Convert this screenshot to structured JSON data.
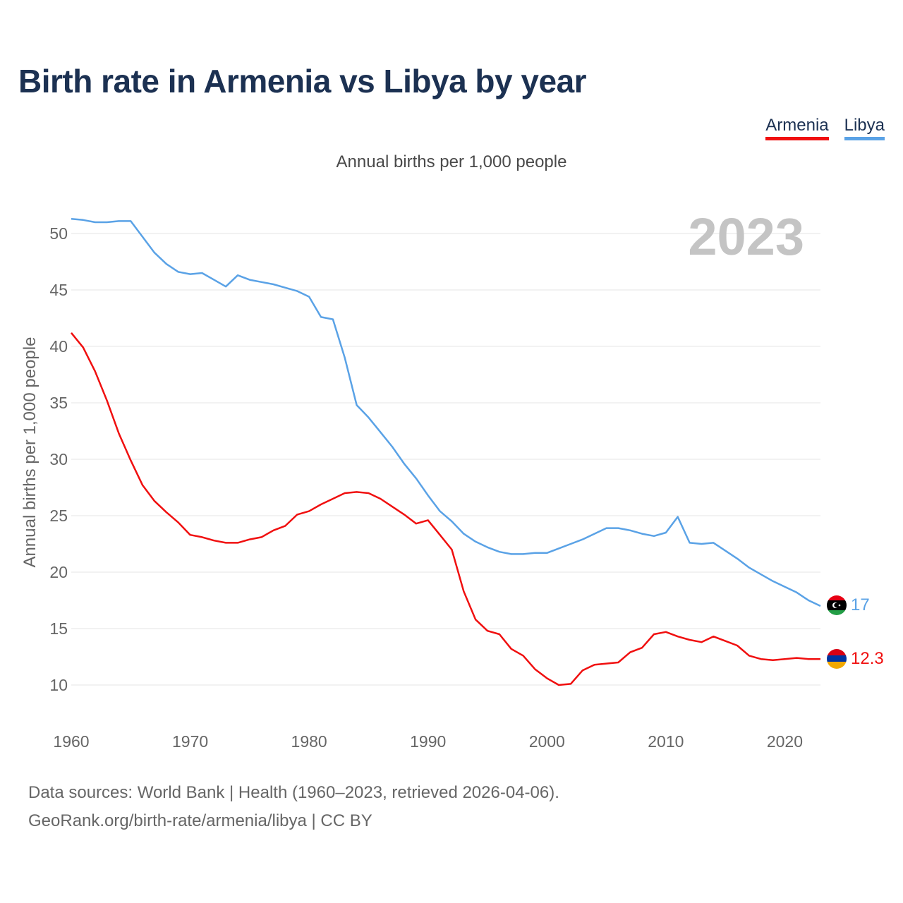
{
  "title": "Birth rate in Armenia vs Libya by year",
  "subtitle": "Annual births per 1,000 people",
  "legend": [
    {
      "name": "Armenia",
      "color": "#f00f0f"
    },
    {
      "name": "Libya",
      "color": "#5aa2e6"
    }
  ],
  "year_watermark": "2023",
  "footer": {
    "line1": "Data sources: World Bank | Health (1960–2023, retrieved 2026-04-06).",
    "line2": "GeoRank.org/birth-rate/armenia/libya | CC BY"
  },
  "chart_data": {
    "type": "line",
    "title": "Birth rate in Armenia vs Libya by year",
    "ylabel": "Annual births per 1,000 people",
    "xlabel": "",
    "xlim": [
      1960,
      2023
    ],
    "ylim": [
      7,
      53
    ],
    "x_ticks": [
      1960,
      1970,
      1980,
      1990,
      2000,
      2010,
      2020
    ],
    "y_ticks": [
      10,
      15,
      20,
      25,
      30,
      35,
      40,
      45,
      50
    ],
    "grid": true,
    "series": [
      {
        "name": "Libya",
        "color": "#5aa2e6",
        "end_label": "17",
        "flag": "libya",
        "x": [
          1960,
          1961,
          1962,
          1963,
          1964,
          1965,
          1966,
          1967,
          1968,
          1969,
          1970,
          1971,
          1972,
          1973,
          1974,
          1975,
          1976,
          1977,
          1978,
          1979,
          1980,
          1981,
          1982,
          1983,
          1984,
          1985,
          1986,
          1987,
          1988,
          1989,
          1990,
          1991,
          1992,
          1993,
          1994,
          1995,
          1996,
          1997,
          1998,
          1999,
          2000,
          2001,
          2002,
          2003,
          2004,
          2005,
          2006,
          2007,
          2008,
          2009,
          2010,
          2011,
          2012,
          2013,
          2014,
          2015,
          2016,
          2017,
          2018,
          2019,
          2020,
          2021,
          2022,
          2023
        ],
        "values": [
          51.3,
          51.2,
          51.0,
          51.0,
          51.1,
          51.1,
          49.7,
          48.3,
          47.3,
          46.6,
          46.4,
          46.5,
          45.9,
          45.3,
          46.3,
          45.9,
          45.7,
          45.5,
          45.2,
          44.9,
          44.4,
          42.6,
          42.4,
          39.0,
          34.8,
          33.7,
          32.4,
          31.1,
          29.6,
          28.3,
          26.8,
          25.4,
          24.5,
          23.4,
          22.7,
          22.2,
          21.8,
          21.6,
          21.6,
          21.7,
          21.7,
          22.1,
          22.5,
          22.9,
          23.4,
          23.9,
          23.9,
          23.7,
          23.4,
          23.2,
          23.5,
          24.9,
          22.6,
          22.5,
          22.6,
          21.9,
          21.2,
          20.4,
          19.8,
          19.2,
          18.7,
          18.2,
          17.5,
          17.0
        ]
      },
      {
        "name": "Armenia",
        "color": "#f00f0f",
        "end_label": "12.3",
        "flag": "armenia",
        "x": [
          1960,
          1961,
          1962,
          1963,
          1964,
          1965,
          1966,
          1967,
          1968,
          1969,
          1970,
          1971,
          1972,
          1973,
          1974,
          1975,
          1976,
          1977,
          1978,
          1979,
          1980,
          1981,
          1982,
          1983,
          1984,
          1985,
          1986,
          1987,
          1988,
          1989,
          1990,
          1991,
          1992,
          1993,
          1994,
          1995,
          1996,
          1997,
          1998,
          1999,
          2000,
          2001,
          2002,
          2003,
          2004,
          2005,
          2006,
          2007,
          2008,
          2009,
          2010,
          2011,
          2012,
          2013,
          2014,
          2015,
          2016,
          2017,
          2018,
          2019,
          2020,
          2021,
          2022,
          2023
        ],
        "values": [
          41.2,
          39.9,
          37.8,
          35.2,
          32.3,
          29.9,
          27.7,
          26.3,
          25.3,
          24.4,
          23.3,
          23.1,
          22.8,
          22.6,
          22.6,
          22.9,
          23.1,
          23.7,
          24.1,
          25.1,
          25.4,
          26.0,
          26.5,
          27.0,
          27.1,
          27.0,
          26.5,
          25.8,
          25.1,
          24.3,
          24.6,
          23.3,
          22.0,
          18.3,
          15.8,
          14.8,
          14.5,
          13.2,
          12.6,
          11.4,
          10.6,
          10.0,
          10.1,
          11.3,
          11.8,
          11.9,
          12.0,
          12.9,
          13.3,
          14.5,
          14.7,
          14.3,
          14.0,
          13.8,
          14.3,
          13.9,
          13.5,
          12.6,
          12.3,
          12.2,
          12.3,
          12.4,
          12.3,
          12.3
        ]
      }
    ]
  }
}
